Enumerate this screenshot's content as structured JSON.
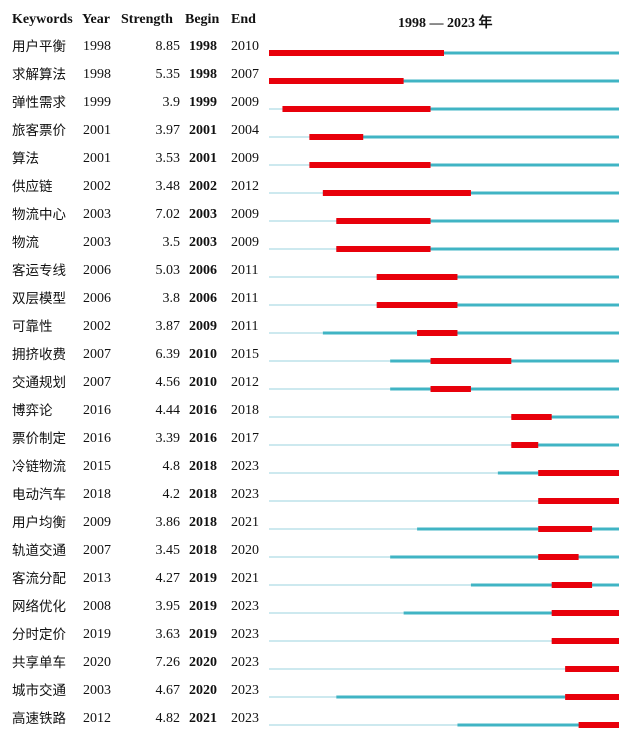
{
  "headers": {
    "keywords": "Keywords",
    "year": "Year",
    "strength": "Strength",
    "begin": "Begin",
    "end": "End",
    "timeline": "1998 — 2023 年"
  },
  "chart_data": {
    "type": "table",
    "x_range": [
      1998,
      2023
    ],
    "colors": {
      "burst": "#e8000b",
      "active": "#40b4c4",
      "inactive": "#cde9ef"
    },
    "rows": [
      {
        "keyword": "用户平衡",
        "year": "1998",
        "strength": "8.85",
        "begin": "1998",
        "end": "2010"
      },
      {
        "keyword": "求解算法",
        "year": "1998",
        "strength": "5.35",
        "begin": "1998",
        "end": "2007"
      },
      {
        "keyword": "弹性需求",
        "year": "1999",
        "strength": "3.9",
        "begin": "1999",
        "end": "2009"
      },
      {
        "keyword": "旅客票价",
        "year": "2001",
        "strength": "3.97",
        "begin": "2001",
        "end": "2004"
      },
      {
        "keyword": "算法",
        "year": "2001",
        "strength": "3.53",
        "begin": "2001",
        "end": "2009"
      },
      {
        "keyword": "供应链",
        "year": "2002",
        "strength": "3.48",
        "begin": "2002",
        "end": "2012"
      },
      {
        "keyword": "物流中心",
        "year": "2003",
        "strength": "7.02",
        "begin": "2003",
        "end": "2009"
      },
      {
        "keyword": "物流",
        "year": "2003",
        "strength": "3.5",
        "begin": "2003",
        "end": "2009"
      },
      {
        "keyword": "客运专线",
        "year": "2006",
        "strength": "5.03",
        "begin": "2006",
        "end": "2011"
      },
      {
        "keyword": "双层模型",
        "year": "2006",
        "strength": "3.8",
        "begin": "2006",
        "end": "2011"
      },
      {
        "keyword": "可靠性",
        "year": "2002",
        "strength": "3.87",
        "begin": "2009",
        "end": "2011"
      },
      {
        "keyword": "拥挤收费",
        "year": "2007",
        "strength": "6.39",
        "begin": "2010",
        "end": "2015"
      },
      {
        "keyword": "交通规划",
        "year": "2007",
        "strength": "4.56",
        "begin": "2010",
        "end": "2012"
      },
      {
        "keyword": "博弈论",
        "year": "2016",
        "strength": "4.44",
        "begin": "2016",
        "end": "2018"
      },
      {
        "keyword": "票价制定",
        "year": "2016",
        "strength": "3.39",
        "begin": "2016",
        "end": "2017"
      },
      {
        "keyword": "冷链物流",
        "year": "2015",
        "strength": "4.8",
        "begin": "2018",
        "end": "2023"
      },
      {
        "keyword": "电动汽车",
        "year": "2018",
        "strength": "4.2",
        "begin": "2018",
        "end": "2023"
      },
      {
        "keyword": "用户均衡",
        "year": "2009",
        "strength": "3.86",
        "begin": "2018",
        "end": "2021"
      },
      {
        "keyword": "轨道交通",
        "year": "2007",
        "strength": "3.45",
        "begin": "2018",
        "end": "2020"
      },
      {
        "keyword": "客流分配",
        "year": "2013",
        "strength": "4.27",
        "begin": "2019",
        "end": "2021"
      },
      {
        "keyword": "网络优化",
        "year": "2008",
        "strength": "3.95",
        "begin": "2019",
        "end": "2023"
      },
      {
        "keyword": "分时定价",
        "year": "2019",
        "strength": "3.63",
        "begin": "2019",
        "end": "2023"
      },
      {
        "keyword": "共享单车",
        "year": "2020",
        "strength": "7.26",
        "begin": "2020",
        "end": "2023"
      },
      {
        "keyword": "城市交通",
        "year": "2003",
        "strength": "4.67",
        "begin": "2020",
        "end": "2023"
      },
      {
        "keyword": "高速铁路",
        "year": "2012",
        "strength": "4.82",
        "begin": "2021",
        "end": "2023"
      }
    ]
  }
}
